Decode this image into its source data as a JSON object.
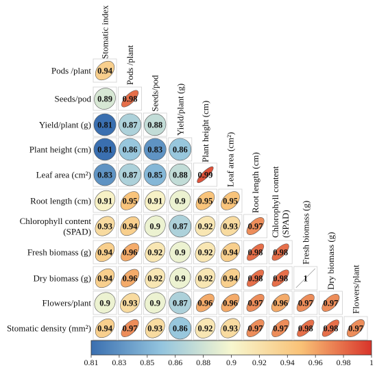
{
  "chart_data": {
    "type": "heatmap",
    "variables": [
      "Stomatic index",
      "Pods /plant",
      "Seeds/pod",
      "Yield/plant (g)",
      "Plant height (cm)",
      "Leaf area (cm²)",
      "Root length (cm)",
      "Chlorophyll content (SPAD)",
      "Fresh biomass (g)",
      "Dry biomass (g)",
      "Flowers/plant",
      "Stomatic density (mm²)"
    ],
    "row_labels": [
      [
        "Pods /plant"
      ],
      [
        "Seeds/pod"
      ],
      [
        "Yield/plant (g)"
      ],
      [
        "Plant height (cm)"
      ],
      [
        "Leaf area (cm²)"
      ],
      [
        "Root length (cm)"
      ],
      [
        "Chlorophyll content",
        "(SPAD)"
      ],
      [
        "Fresh biomass (g)"
      ],
      [
        "Dry biomass (g)"
      ],
      [
        "Flowers/plant"
      ],
      [
        "Stomatic density (mm²)"
      ]
    ],
    "column_labels": [
      [
        "Stomatic index"
      ],
      [
        "Pods /plant"
      ],
      [
        "Seeds/pod"
      ],
      [
        "Yield/plant (g)"
      ],
      [
        "Plant height (cm)"
      ],
      [
        "Leaf area (cm²)"
      ],
      [
        "Root length (cm)"
      ],
      [
        "Chlorophyll content",
        "(SPAD)"
      ],
      [
        "Fresh biomass (g)"
      ],
      [
        "Dry biomass (g)"
      ],
      [
        "Flowers/plant"
      ]
    ],
    "lower_triangle_values": [
      [
        0.94
      ],
      [
        0.89,
        0.98
      ],
      [
        0.81,
        0.87,
        0.88
      ],
      [
        0.81,
        0.86,
        0.83,
        0.86
      ],
      [
        0.83,
        0.87,
        0.85,
        0.88,
        0.99
      ],
      [
        0.91,
        0.95,
        0.91,
        0.9,
        0.95,
        0.95
      ],
      [
        0.93,
        0.94,
        0.9,
        0.87,
        0.92,
        0.93,
        0.97
      ],
      [
        0.94,
        0.96,
        0.92,
        0.9,
        0.92,
        0.94,
        0.98,
        0.98
      ],
      [
        0.94,
        0.96,
        0.92,
        0.9,
        0.92,
        0.94,
        0.98,
        0.98,
        1
      ],
      [
        0.9,
        0.93,
        0.9,
        0.87,
        0.96,
        0.96,
        0.97,
        0.96,
        0.97,
        0.97
      ],
      [
        0.94,
        0.97,
        0.93,
        0.86,
        0.92,
        0.93,
        0.97,
        0.97,
        0.98,
        0.98,
        0.97
      ]
    ],
    "diagonal_label": "1",
    "colorbar": {
      "range": [
        0.81,
        1
      ],
      "ticks": [
        "0.81",
        "0.83",
        "0.85",
        "0.86",
        "0.88",
        "0.9",
        "0.92",
        "0.94",
        "0.96",
        "0.98",
        "1"
      ],
      "colors": [
        "#3a6fb0",
        "#93c4de",
        "#f7f7cf",
        "#f9c176",
        "#d8342a"
      ]
    }
  }
}
